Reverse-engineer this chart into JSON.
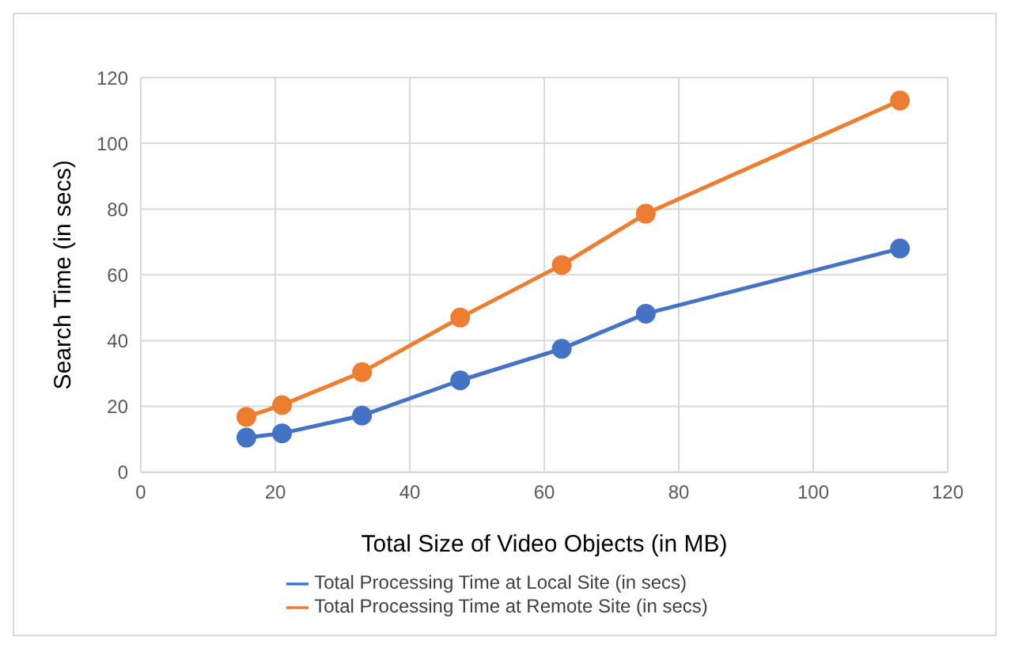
{
  "chart_data": {
    "type": "line",
    "xlabel": "Total Size of Video Objects (in MB)",
    "ylabel": "Search Time (in secs)",
    "x": [
      15.7,
      21,
      32.9,
      47.5,
      62.6,
      75.1,
      112.9
    ],
    "series": [
      {
        "name": "Total Processing Time at Local Site (in secs)",
        "color": "#4472c4",
        "values": [
          10.5,
          11.8,
          17.2,
          27.9,
          37.5,
          48.2,
          68
        ]
      },
      {
        "name": "Total Processing Time at Remote Site (in secs)",
        "color": "#ed7d31",
        "values": [
          16.8,
          20.4,
          30.4,
          47,
          63,
          78.6,
          113
        ]
      }
    ],
    "xlim": [
      0,
      120
    ],
    "xticks": [
      0,
      20,
      40,
      60,
      80,
      100,
      120
    ],
    "ylim": [
      0,
      120
    ],
    "yticks": [
      0,
      20,
      40,
      60,
      80,
      100,
      120
    ],
    "grid": true,
    "legend": "bottom",
    "marker": "circle",
    "line_style": "solid"
  }
}
